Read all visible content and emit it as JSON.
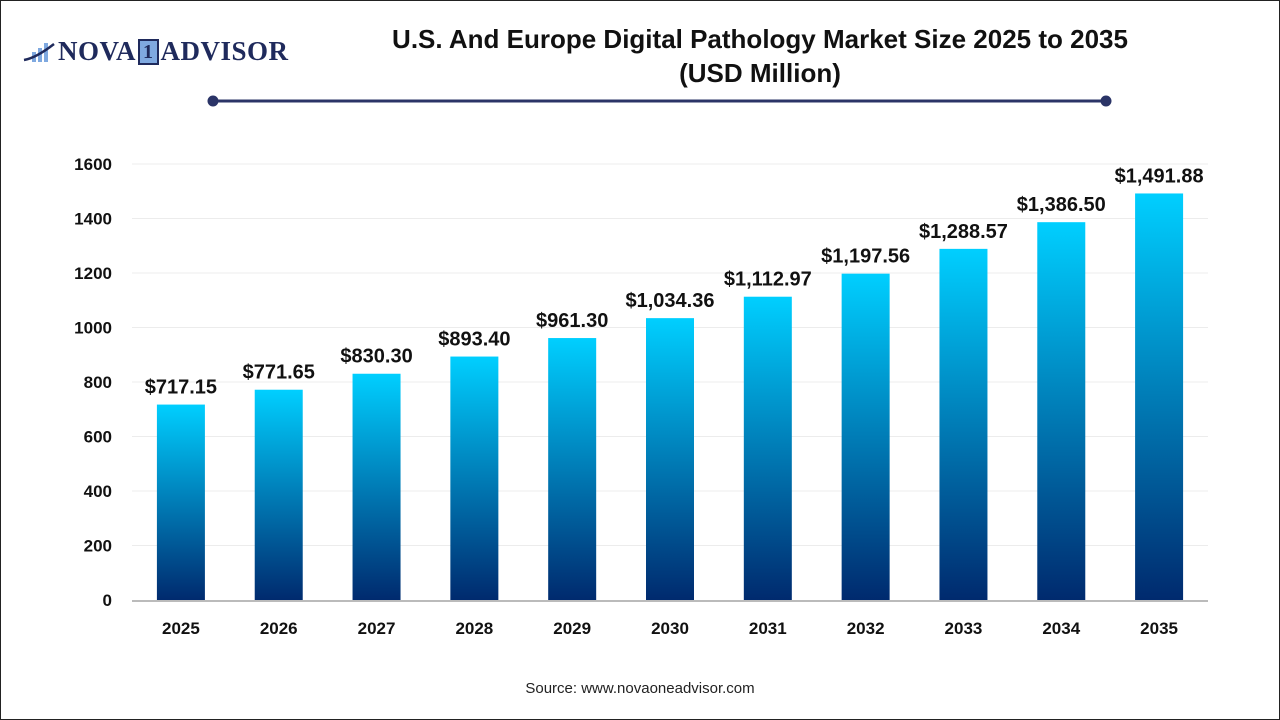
{
  "logo": {
    "text_left": "NOVA",
    "text_mid": "1",
    "text_right": "ADVISOR"
  },
  "title_line1": "U.S. And Europe Digital Pathology Market Size 2025 to 2035",
  "title_line2": "(USD Million)",
  "source": "Source: www.novaoneadvisor.com",
  "colors": {
    "bar_top": "#00cfff",
    "bar_bottom": "#002a6e",
    "title_rule": "#2b3467"
  },
  "chart_data": {
    "type": "bar",
    "title": "U.S. And Europe Digital Pathology Market Size 2025 to 2035 (USD Million)",
    "xlabel": "",
    "ylabel": "",
    "categories": [
      "2025",
      "2026",
      "2027",
      "2028",
      "2029",
      "2030",
      "2031",
      "2032",
      "2033",
      "2034",
      "2035"
    ],
    "values": [
      717.15,
      771.65,
      830.3,
      893.4,
      961.3,
      1034.36,
      1112.97,
      1197.56,
      1288.57,
      1386.5,
      1491.88
    ],
    "data_labels": [
      "$717.15",
      "$771.65",
      "$830.30",
      "$893.40",
      "$961.30",
      "$1,034.36",
      "$1,112.97",
      "$1,197.56",
      "$1,288.57",
      "$1,386.50",
      "$1,491.88"
    ],
    "ylim": [
      0,
      1600
    ],
    "yticks": [
      0,
      200,
      400,
      600,
      800,
      1000,
      1200,
      1400,
      1600
    ],
    "grid": true,
    "legend": "none"
  }
}
